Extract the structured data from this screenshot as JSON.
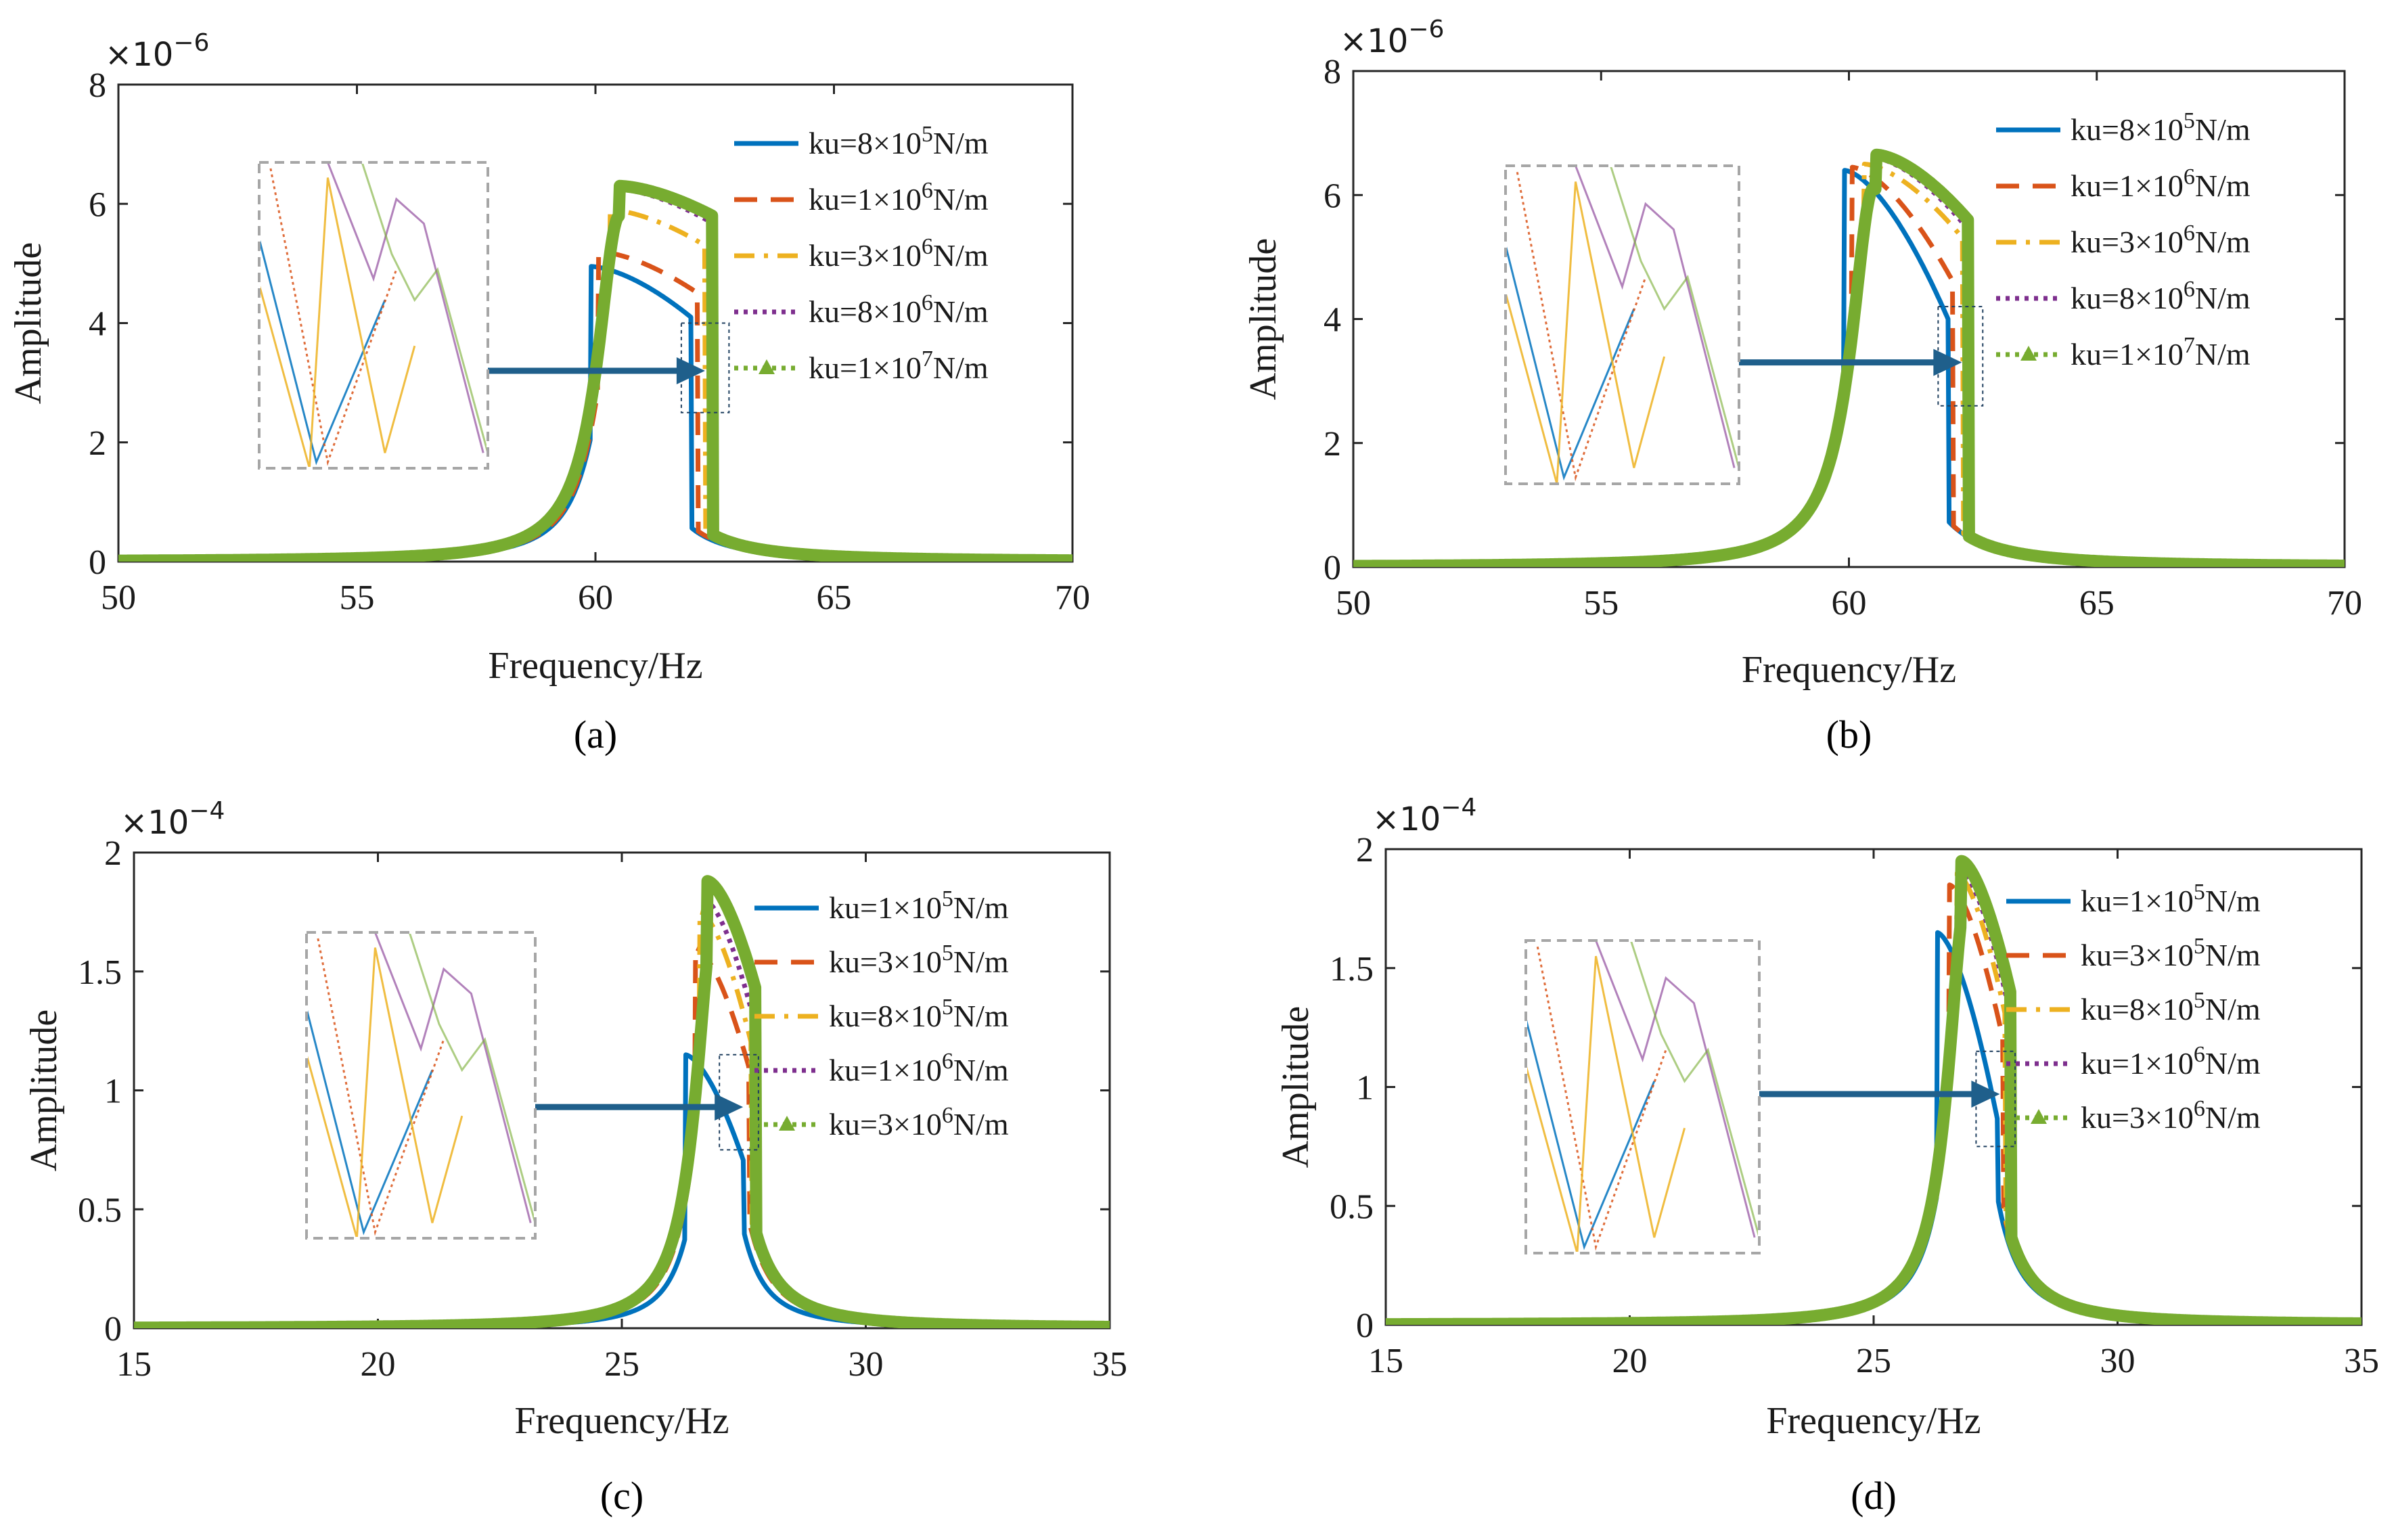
{
  "colors": {
    "s1": "#0072bd",
    "s2": "#d95319",
    "s3": "#edb120",
    "s4": "#7e2f8e",
    "s5": "#77ac30",
    "arrow": "#1f5f8b",
    "inset_border": "#a6a6a6"
  },
  "chart_data": [
    {
      "type": "line",
      "panel_label": "(a)",
      "xlabel": "Frequency/Hz",
      "ylabel": "Amplitude",
      "exponent": "×10",
      "exponent_power": "−6",
      "xlim": [
        50,
        70
      ],
      "ylim": [
        0,
        8
      ],
      "xticks": [
        50,
        55,
        60,
        65,
        70
      ],
      "yticks": [
        0,
        2,
        4,
        6,
        8
      ],
      "x_tick_labels": [
        "50",
        "55",
        "60",
        "65",
        "70"
      ],
      "y_tick_labels": [
        "0",
        "2",
        "4",
        "6",
        "8"
      ],
      "f0": 60.5,
      "gamma": 0.55,
      "zoom_box": [
        61.8,
        62.8,
        2.5,
        4.0
      ],
      "arrow_y": 3.2,
      "series": [
        {
          "name": "ku=8×10",
          "power": "5",
          "unit": "N/m",
          "style": "solid",
          "jump_up": 59.9,
          "jump_down": 62.0,
          "peak": 4.95,
          "end": 4.1,
          "width": 0.55
        },
        {
          "name": "ku=1×10",
          "power": "6",
          "unit": "N/m",
          "style": "dash",
          "jump_up": 60.05,
          "jump_down": 62.15,
          "peak": 5.2,
          "end": 4.5,
          "width": 0.55
        },
        {
          "name": "ku=3×10",
          "power": "6",
          "unit": "N/m",
          "style": "dashdot",
          "jump_up": 60.3,
          "jump_down": 62.3,
          "peak": 5.9,
          "end": 5.3,
          "width": 0.55
        },
        {
          "name": "ku=8×10",
          "power": "6",
          "unit": "N/m",
          "style": "dot",
          "jump_up": 60.45,
          "jump_down": 62.4,
          "peak": 6.25,
          "end": 5.7,
          "width": 0.55
        },
        {
          "name": "ku=1×10",
          "power": "7",
          "unit": "N/m",
          "style": "triangle",
          "jump_up": 60.5,
          "jump_down": 62.45,
          "peak": 6.3,
          "end": 5.8,
          "width": 0.55
        }
      ]
    },
    {
      "type": "line",
      "panel_label": "(b)",
      "xlabel": "Frequency/Hz",
      "ylabel": "Amplitude",
      "exponent": "×10",
      "exponent_power": "−6",
      "xlim": [
        50,
        70
      ],
      "ylim": [
        0,
        8
      ],
      "xticks": [
        50,
        55,
        60,
        65,
        70
      ],
      "yticks": [
        0,
        2,
        4,
        6,
        8
      ],
      "x_tick_labels": [
        "50",
        "55",
        "60",
        "65",
        "70"
      ],
      "y_tick_labels": [
        "0",
        "2",
        "4",
        "6",
        "8"
      ],
      "f0": 60.5,
      "gamma": 0.55,
      "zoom_box": [
        61.8,
        62.7,
        2.6,
        4.2
      ],
      "arrow_y": 3.3,
      "series": [
        {
          "name": "ku=8×10",
          "power": "5",
          "unit": "N/m",
          "style": "solid",
          "jump_up": 59.9,
          "jump_down": 62.0,
          "peak": 6.4,
          "end": 4.0,
          "width": 0.55
        },
        {
          "name": "ku=1×10",
          "power": "6",
          "unit": "N/m",
          "style": "dash",
          "jump_up": 60.05,
          "jump_down": 62.1,
          "peak": 6.45,
          "end": 4.6,
          "width": 0.55
        },
        {
          "name": "ku=3×10",
          "power": "6",
          "unit": "N/m",
          "style": "dashdot",
          "jump_up": 60.3,
          "jump_down": 62.3,
          "peak": 6.5,
          "end": 5.3,
          "width": 0.55
        },
        {
          "name": "ku=8×10",
          "power": "6",
          "unit": "N/m",
          "style": "dot",
          "jump_up": 60.5,
          "jump_down": 62.35,
          "peak": 6.6,
          "end": 5.5,
          "width": 0.55
        },
        {
          "name": "ku=1×10",
          "power": "7",
          "unit": "N/m",
          "style": "triangle",
          "jump_up": 60.55,
          "jump_down": 62.4,
          "peak": 6.65,
          "end": 5.6,
          "width": 0.55
        }
      ]
    },
    {
      "type": "line",
      "panel_label": "(c)",
      "xlabel": "Frequency/Hz",
      "ylabel": "Amplitude",
      "exponent": "×10",
      "exponent_power": "−4",
      "xlim": [
        15,
        35
      ],
      "ylim": [
        0,
        2
      ],
      "xticks": [
        15,
        20,
        25,
        30,
        35
      ],
      "yticks": [
        0,
        0.5,
        1,
        1.5,
        2
      ],
      "x_tick_labels": [
        "15",
        "20",
        "25",
        "30",
        "35"
      ],
      "y_tick_labels": [
        "0",
        "0.5",
        "1",
        "1.5",
        "2"
      ],
      "f0": 26.9,
      "gamma": 0.45,
      "zoom_box": [
        27.0,
        27.8,
        0.75,
        1.15
      ],
      "arrow_y": 0.93,
      "series": [
        {
          "name": "ku=1×10",
          "power": "5",
          "unit": "N/m",
          "style": "solid",
          "jump_up": 26.3,
          "jump_down": 27.5,
          "peak": 1.15,
          "end": 0.7,
          "width": 0.45
        },
        {
          "name": "ku=3×10",
          "power": "5",
          "unit": "N/m",
          "style": "dash",
          "jump_up": 26.5,
          "jump_down": 27.6,
          "peak": 1.6,
          "end": 1.1,
          "width": 0.45
        },
        {
          "name": "ku=8×10",
          "power": "5",
          "unit": "N/m",
          "style": "dashdot",
          "jump_up": 26.6,
          "jump_down": 27.65,
          "peak": 1.75,
          "end": 1.2,
          "width": 0.45
        },
        {
          "name": "ku=1×10",
          "power": "6",
          "unit": "N/m",
          "style": "dot",
          "jump_up": 26.7,
          "jump_down": 27.7,
          "peak": 1.8,
          "end": 1.3,
          "width": 0.45
        },
        {
          "name": "ku=3×10",
          "power": "6",
          "unit": "N/m",
          "style": "triangle",
          "jump_up": 26.75,
          "jump_down": 27.75,
          "peak": 1.88,
          "end": 1.42,
          "width": 0.45
        }
      ]
    },
    {
      "type": "line",
      "panel_label": "(d)",
      "xlabel": "Frequency/Hz",
      "ylabel": "Amplitude",
      "exponent": "×10",
      "exponent_power": "−4",
      "xlim": [
        15,
        35
      ],
      "ylim": [
        0,
        2
      ],
      "xticks": [
        15,
        20,
        25,
        30,
        35
      ],
      "yticks": [
        0,
        0.5,
        1,
        1.5,
        2
      ],
      "x_tick_labels": [
        "15",
        "20",
        "25",
        "30",
        "35"
      ],
      "y_tick_labels": [
        "0",
        "0.5",
        "1",
        "1.5",
        "2"
      ],
      "f0": 26.9,
      "gamma": 0.45,
      "zoom_box": [
        27.1,
        27.9,
        0.75,
        1.15
      ],
      "arrow_y": 0.97,
      "series": [
        {
          "name": "ku=1×10",
          "power": "5",
          "unit": "N/m",
          "style": "solid",
          "jump_up": 26.3,
          "jump_down": 27.55,
          "peak": 1.65,
          "end": 0.85,
          "width": 0.45
        },
        {
          "name": "ku=3×10",
          "power": "5",
          "unit": "N/m",
          "style": "dash",
          "jump_up": 26.55,
          "jump_down": 27.65,
          "peak": 1.85,
          "end": 1.2,
          "width": 0.45
        },
        {
          "name": "ku=8×10",
          "power": "5",
          "unit": "N/m",
          "style": "dashdot",
          "jump_up": 26.7,
          "jump_down": 27.7,
          "peak": 1.9,
          "end": 1.3,
          "width": 0.45
        },
        {
          "name": "ku=1×10",
          "power": "6",
          "unit": "N/m",
          "style": "dot",
          "jump_up": 26.75,
          "jump_down": 27.75,
          "peak": 1.92,
          "end": 1.35,
          "width": 0.45
        },
        {
          "name": "ku=3×10",
          "power": "6",
          "unit": "N/m",
          "style": "triangle",
          "jump_up": 26.8,
          "jump_down": 27.8,
          "peak": 1.95,
          "end": 1.4,
          "width": 0.45
        }
      ]
    }
  ]
}
